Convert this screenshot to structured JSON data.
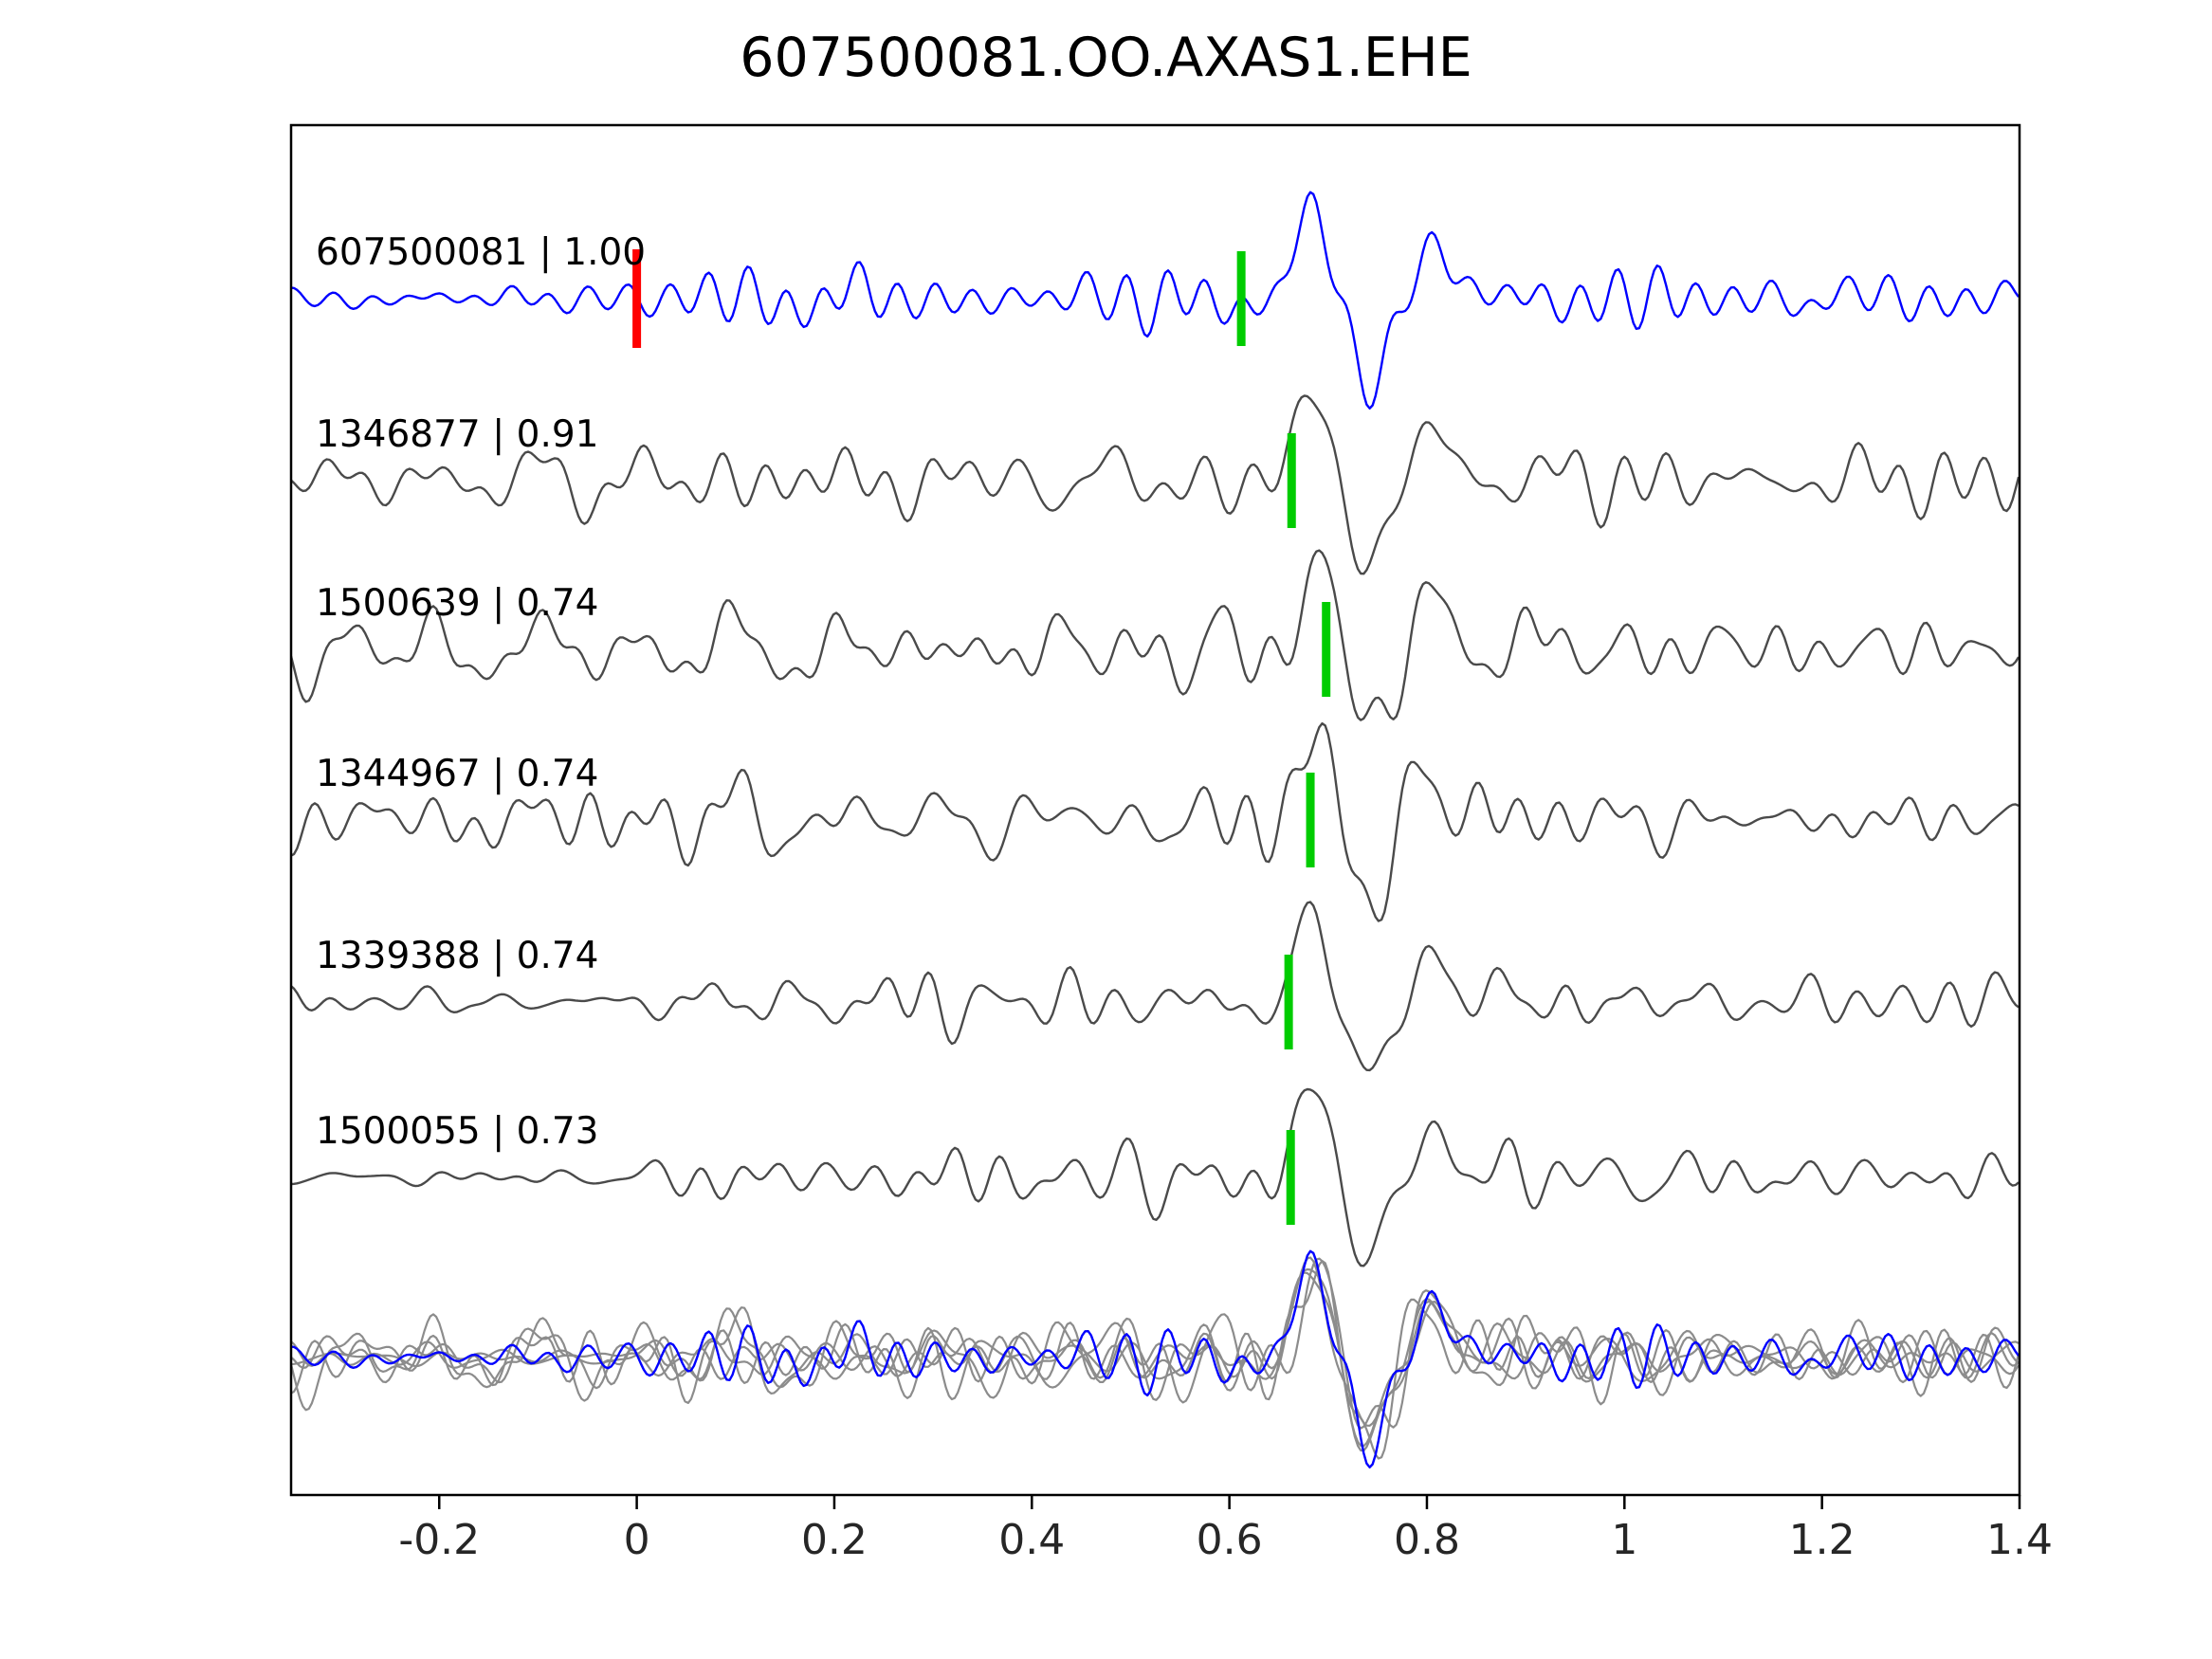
{
  "title": "607500081.OO.AXAS1.EHE",
  "chart_data": {
    "type": "line",
    "title": "607500081.OO.AXAS1.EHE",
    "xlabel": "",
    "ylabel": "",
    "xlim": [
      -0.35,
      1.4
    ],
    "x_ticks": [
      -0.2,
      0,
      0.2,
      0.4,
      0.6,
      0.8,
      1,
      1.2,
      1.4
    ],
    "x_tick_labels": [
      "-0.2",
      "0",
      "0.2",
      "0.4",
      "0.6",
      "0.8",
      "1",
      "1.2",
      "1.4"
    ],
    "grid": false,
    "legend": "none",
    "y_axis": "hidden (stacked normalized waveform rows)",
    "colors": {
      "template_trace": "#0000ff",
      "detection_trace": "#4a4a4a",
      "overlay_trace": "#8c8c8c",
      "pick_marker": "#00cc00",
      "origin_marker": "#ff0000",
      "axis": "#000000",
      "tick_label": "#262626"
    },
    "traces": [
      {
        "id": "607500081",
        "correlation": 1.0,
        "label": "607500081 | 1.00",
        "role": "template",
        "green_pick_time": 0.612,
        "red_marker_time": 0.0,
        "seed": 3,
        "noise_amp": 0.75,
        "env_left": 0.55,
        "pulse_time": 0.688,
        "pulse_amp": 1.7
      },
      {
        "id": "1346877",
        "correlation": 0.91,
        "label": "1346877 | 0.91",
        "role": "detection",
        "green_pick_time": 0.663,
        "red_marker_time": null,
        "seed": 17,
        "noise_amp": 0.95,
        "env_left": 0.9,
        "pulse_time": 0.688,
        "pulse_amp": 1.75
      },
      {
        "id": "1500639",
        "correlation": 0.74,
        "label": "1500639 | 0.74",
        "role": "detection",
        "green_pick_time": 0.698,
        "red_marker_time": null,
        "seed": 29,
        "noise_amp": 1.25,
        "env_left": 0.9,
        "pulse_time": 0.695,
        "pulse_amp": 1.7
      },
      {
        "id": "1344967",
        "correlation": 0.74,
        "label": "1344967 | 0.74",
        "role": "detection",
        "green_pick_time": 0.682,
        "red_marker_time": null,
        "seed": 41,
        "noise_amp": 1.2,
        "env_left": 0.9,
        "pulse_time": 0.692,
        "pulse_amp": 1.7
      },
      {
        "id": "1339388",
        "correlation": 0.74,
        "label": "1339388 | 0.74",
        "role": "detection",
        "green_pick_time": 0.66,
        "red_marker_time": null,
        "seed": 57,
        "noise_amp": 0.8,
        "env_left": 0.4,
        "pulse_time": 0.686,
        "pulse_amp": 1.75
      },
      {
        "id": "1500055",
        "correlation": 0.73,
        "label": "1500055 | 0.73",
        "role": "detection",
        "green_pick_time": 0.662,
        "red_marker_time": null,
        "seed": 73,
        "noise_amp": 0.6,
        "env_left": 0.3,
        "pulse_time": 0.69,
        "pulse_amp": 1.8
      }
    ],
    "overlay": {
      "description": "bottom row: all detection traces overlaid in gray with the blue template trace on top",
      "includes_template": true
    }
  }
}
